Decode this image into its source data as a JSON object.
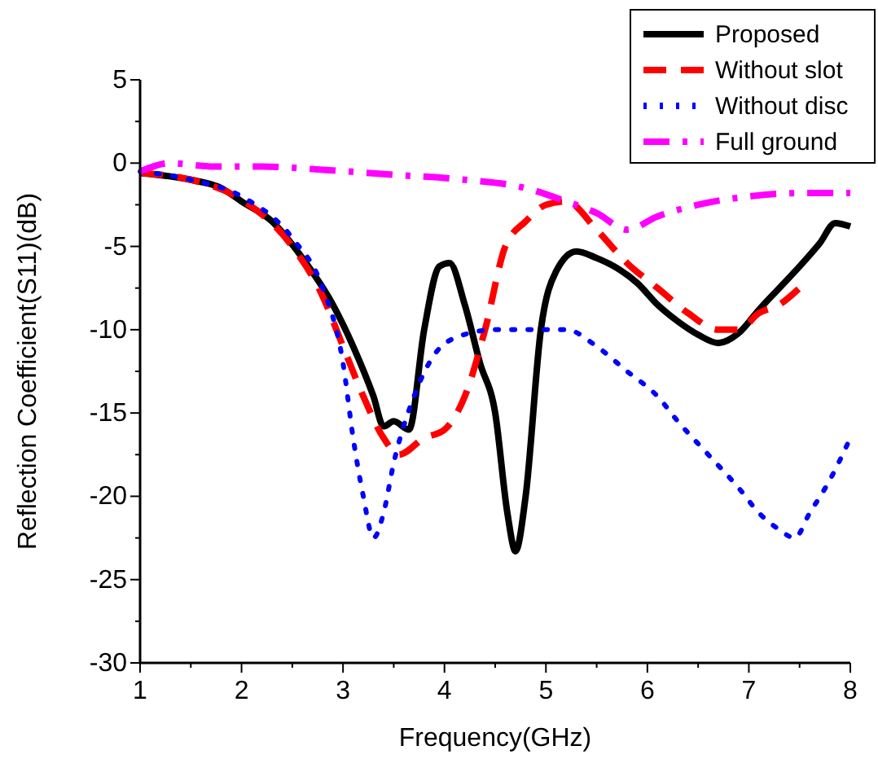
{
  "chart_data": {
    "type": "line",
    "xlabel": "Frequency(GHz)",
    "ylabel": "Reflection Coefficient(S11)(dB)",
    "xlim": [
      1,
      8
    ],
    "ylim": [
      -30,
      5
    ],
    "xticks": [
      1,
      {
        "value": 1.5,
        "label": null
      },
      2,
      {
        "value": 2.5,
        "label": null
      },
      3,
      {
        "value": 3.5,
        "label": null
      },
      4,
      {
        "value": 4.5,
        "label": null
      },
      5,
      {
        "value": 5.5,
        "label": null
      },
      6,
      {
        "value": 6.5,
        "label": null
      },
      7,
      {
        "value": 7.5,
        "label": null
      },
      8
    ],
    "yticks": [
      -30,
      {
        "value": -27.5,
        "label": null
      },
      -25,
      {
        "value": -22.5,
        "label": null
      },
      -20,
      {
        "value": -17.5,
        "label": null
      },
      -15,
      {
        "value": -12.5,
        "label": null
      },
      -10,
      {
        "value": -7.5,
        "label": null
      },
      -5,
      {
        "value": -2.5,
        "label": null
      },
      0,
      {
        "value": 2.5,
        "label": null
      },
      5
    ],
    "grid": false,
    "legend": "top right",
    "series": [
      {
        "name": "Proposed",
        "color": "#000000",
        "line_style": "solid",
        "x": [
          1,
          1.3,
          1.5,
          1.8,
          2,
          2.3,
          2.6,
          2.9,
          3.1,
          3.3,
          3.4,
          3.5,
          3.65,
          3.8,
          3.95,
          4.05,
          4.2,
          4.35,
          4.5,
          4.62,
          4.7,
          4.8,
          4.95,
          5.1,
          5.3,
          5.5,
          5.7,
          5.9,
          6.1,
          6.3,
          6.5,
          6.7,
          6.9,
          7.1,
          7.3,
          7.5,
          7.7,
          7.85,
          8
        ],
        "values": [
          -0.6,
          -0.8,
          -1,
          -1.5,
          -2.3,
          -3.5,
          -5.7,
          -8.5,
          -11,
          -14,
          -15.8,
          -15.5,
          -16,
          -10,
          -6.2,
          -6,
          -8.5,
          -12,
          -15,
          -21,
          -23.3,
          -20,
          -10,
          -6.5,
          -5.3,
          -5.7,
          -6.3,
          -7.2,
          -8.5,
          -9.5,
          -10.3,
          -10.8,
          -10.2,
          -8.8,
          -7.5,
          -6.2,
          -4.8,
          -3.6,
          -3.8
        ]
      },
      {
        "name": "Without slot",
        "color": "#ff0000",
        "line_style": "dashed",
        "x": [
          1,
          1.5,
          2,
          2.5,
          2.8,
          3,
          3.2,
          3.4,
          3.55,
          3.8,
          4,
          4.2,
          4.4,
          4.6,
          4.8,
          5,
          5.2,
          5.5,
          5.8,
          6.1,
          6.4,
          6.7,
          6.9,
          7.1,
          7.3,
          7.5
        ],
        "values": [
          -0.6,
          -1,
          -2.2,
          -5,
          -8,
          -11,
          -14,
          -16.5,
          -17.5,
          -16.5,
          -16,
          -14,
          -10,
          -5,
          -3.5,
          -2.5,
          -2.3,
          -4,
          -6,
          -7.5,
          -9,
          -10,
          -10,
          -9,
          -8.5,
          -7.5
        ]
      },
      {
        "name": "Without disc",
        "color": "#0000ff",
        "line_style": "dotted",
        "x": [
          1,
          1.5,
          2,
          2.5,
          2.8,
          3,
          3.1,
          3.2,
          3.3,
          3.4,
          3.5,
          3.7,
          3.9,
          4.1,
          4.5,
          4.9,
          5.2,
          5.5,
          5.8,
          6.1,
          6.3,
          6.6,
          6.9,
          7.1,
          7.3,
          7.45,
          7.6,
          7.8,
          8
        ],
        "values": [
          -0.5,
          -1,
          -2,
          -4.5,
          -7.5,
          -12,
          -16.5,
          -20,
          -22.5,
          -21,
          -18,
          -14,
          -11.5,
          -10.5,
          -10,
          -10,
          -10,
          -11,
          -12.5,
          -14,
          -15.5,
          -17.5,
          -19.5,
          -21,
          -22,
          -22.5,
          -21,
          -19,
          -16.5
        ]
      },
      {
        "name": "Full ground",
        "color": "#ff00ff",
        "line_style": "dashdot",
        "x": [
          1,
          1.3,
          1.7,
          2.2,
          2.8,
          3.5,
          4.2,
          4.8,
          5.2,
          5.5,
          5.8,
          6.1,
          6.5,
          7,
          7.5,
          8
        ],
        "values": [
          -0.5,
          0,
          -0.2,
          -0.2,
          -0.4,
          -0.7,
          -1,
          -1.5,
          -2.3,
          -3,
          -4,
          -3.2,
          -2.5,
          -2,
          -1.8,
          -1.8
        ]
      }
    ]
  }
}
